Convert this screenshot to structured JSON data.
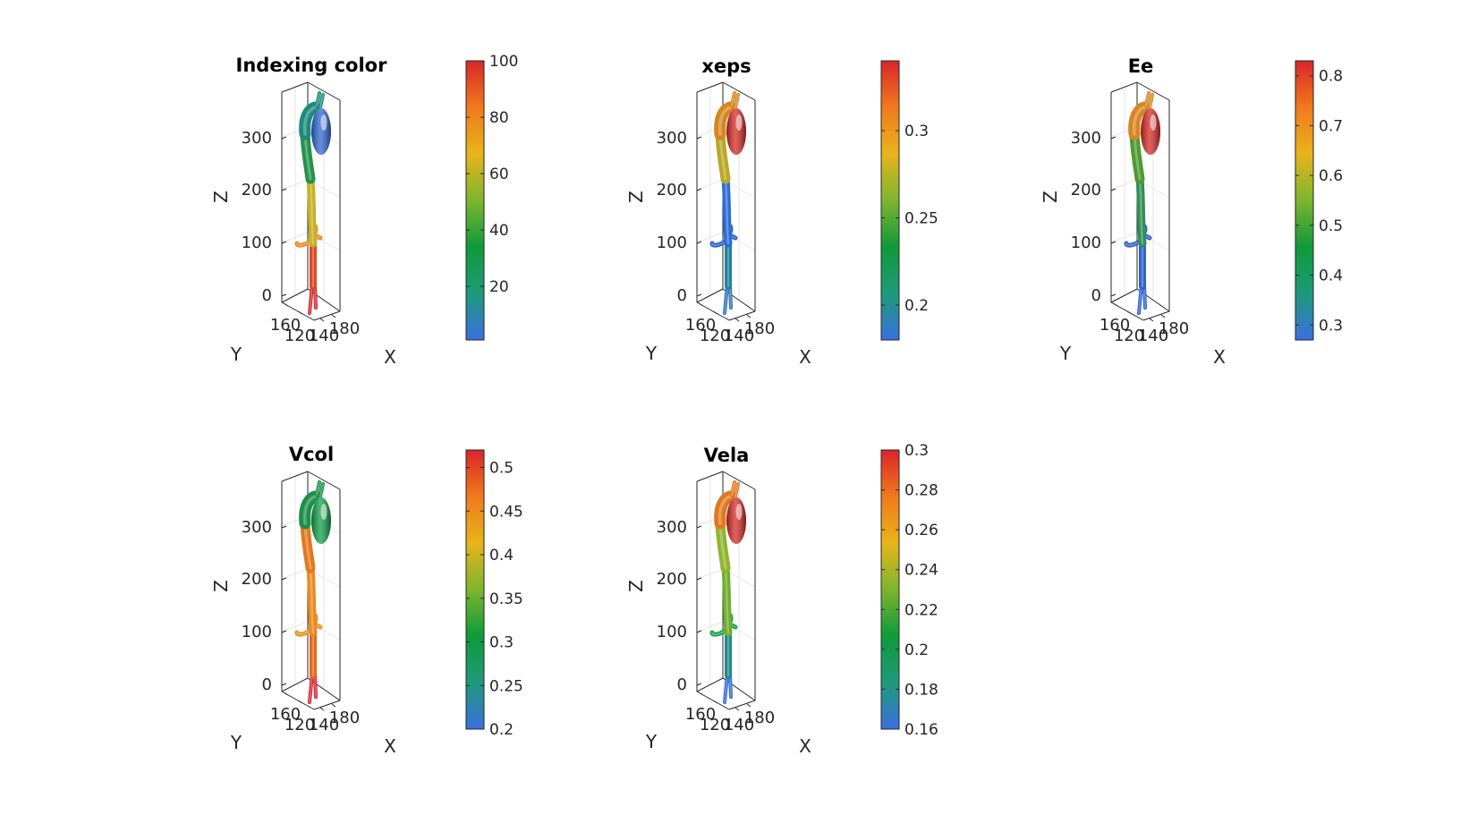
{
  "colormap": [
    "#3a6fe0",
    "#1f9a7a",
    "#0f9a3a",
    "#7db52e",
    "#e8b41a",
    "#f07a1c",
    "#d9252a"
  ],
  "panels": [
    {
      "title": "Indexing color",
      "clim": [
        1,
        100
      ],
      "cbar_ticks": [
        "100",
        "80",
        "60",
        "40",
        "20"
      ],
      "cbar_tick_values": [
        100,
        80,
        60,
        40,
        20
      ],
      "z_ticks": [
        "300",
        "200",
        "100",
        "0"
      ],
      "y_ticks": [
        "160",
        "120"
      ],
      "x_ticks": [
        "140",
        "180"
      ],
      "xlabel": "X",
      "ylabel": "Y",
      "zlabel": "Z",
      "segment_colors": {
        "heart": "#2f67d6",
        "arch": "#1e8a7c",
        "upper_aorta": "#23924a",
        "mid_aorta": "#c7b125",
        "branches": "#e58b25",
        "lower_aorta": "#d84a23",
        "legs": "#d0262c"
      }
    },
    {
      "title": "xeps",
      "clim": [
        0.18,
        0.34
      ],
      "cbar_ticks": [
        "0.3",
        "0.25",
        "0.2"
      ],
      "cbar_tick_values": [
        0.3,
        0.25,
        0.2
      ],
      "z_ticks": [
        "300",
        "200",
        "100",
        "0"
      ],
      "y_ticks": [
        "160",
        "120"
      ],
      "x_ticks": [
        "140",
        "180"
      ],
      "xlabel": "X",
      "ylabel": "Y",
      "zlabel": "Z",
      "segment_colors": {
        "heart": "#d72b26",
        "arch": "#d5861f",
        "upper_aorta": "#b9a726",
        "mid_aorta": "#2f6cd6",
        "branches": "#2a60c9",
        "lower_aorta": "#20829a",
        "legs": "#2a72b8"
      }
    },
    {
      "title": "Ee",
      "clim": [
        0.27,
        0.83
      ],
      "cbar_ticks": [
        "0.8",
        "0.7",
        "0.6",
        "0.5",
        "0.4",
        "0.3"
      ],
      "cbar_tick_values": [
        0.8,
        0.7,
        0.6,
        0.5,
        0.4,
        0.3
      ],
      "z_ticks": [
        "300",
        "200",
        "100",
        "0"
      ],
      "y_ticks": [
        "160",
        "120"
      ],
      "x_ticks": [
        "140",
        "180"
      ],
      "xlabel": "X",
      "ylabel": "Y",
      "zlabel": "Z",
      "segment_colors": {
        "heart": "#d72b26",
        "arch": "#d5861f",
        "upper_aorta": "#4c9a30",
        "mid_aorta": "#2e8f55",
        "branches": "#2d5fcc",
        "lower_aorta": "#2f62d2",
        "legs": "#2c5fd0"
      }
    },
    {
      "title": "Vcol",
      "clim": [
        0.2,
        0.52
      ],
      "cbar_ticks": [
        "0.5",
        "0.45",
        "0.4",
        "0.35",
        "0.3",
        "0.25",
        "0.2"
      ],
      "cbar_tick_values": [
        0.5,
        0.45,
        0.4,
        0.35,
        0.3,
        0.25,
        0.2
      ],
      "z_ticks": [
        "300",
        "200",
        "100",
        "0"
      ],
      "y_ticks": [
        "160",
        "120"
      ],
      "x_ticks": [
        "140",
        "180"
      ],
      "xlabel": "X",
      "ylabel": "Y",
      "zlabel": "Z",
      "segment_colors": {
        "heart": "#13a04a",
        "arch": "#1e8f4a",
        "upper_aorta": "#e3781e",
        "mid_aorta": "#e98a22",
        "branches": "#e6931f",
        "lower_aorta": "#e06a1e",
        "legs": "#d22330"
      }
    },
    {
      "title": "Vela",
      "clim": [
        0.16,
        0.3
      ],
      "cbar_ticks": [
        "0.3",
        "0.28",
        "0.26",
        "0.24",
        "0.22",
        "0.2",
        "0.18",
        "0.16"
      ],
      "cbar_tick_values": [
        0.3,
        0.28,
        0.26,
        0.24,
        0.22,
        0.2,
        0.18,
        0.16
      ],
      "z_ticks": [
        "300",
        "200",
        "100",
        "0"
      ],
      "y_ticks": [
        "160",
        "120"
      ],
      "x_ticks": [
        "140",
        "180"
      ],
      "xlabel": "X",
      "ylabel": "Y",
      "zlabel": "Z",
      "segment_colors": {
        "heart": "#d72b26",
        "arch": "#e0781f",
        "upper_aorta": "#8fb52b",
        "mid_aorta": "#6fae2c",
        "branches": "#18a04a",
        "lower_aorta": "#1f8a8a",
        "legs": "#3068d2"
      }
    }
  ],
  "chart_data": [
    {
      "type": "other",
      "title": "Indexing color",
      "zlabel": "Z",
      "ylabel": "Y",
      "xlabel": "X",
      "z_ticks": [
        0,
        100,
        200,
        300
      ],
      "y_ticks": [
        120,
        160
      ],
      "x_ticks": [
        140,
        180
      ],
      "colorbar": {
        "range": [
          1,
          100
        ],
        "ticks": [
          20,
          40,
          60,
          80,
          100
        ]
      }
    },
    {
      "type": "other",
      "title": "xeps",
      "zlabel": "Z",
      "ylabel": "Y",
      "xlabel": "X",
      "z_ticks": [
        0,
        100,
        200,
        300
      ],
      "y_ticks": [
        120,
        160
      ],
      "x_ticks": [
        140,
        180
      ],
      "colorbar": {
        "range": [
          0.18,
          0.34
        ],
        "ticks": [
          0.2,
          0.25,
          0.3
        ]
      }
    },
    {
      "type": "other",
      "title": "Ee",
      "zlabel": "Z",
      "ylabel": "Y",
      "xlabel": "X",
      "z_ticks": [
        0,
        100,
        200,
        300
      ],
      "y_ticks": [
        120,
        160
      ],
      "x_ticks": [
        140,
        180
      ],
      "colorbar": {
        "range": [
          0.27,
          0.83
        ],
        "ticks": [
          0.3,
          0.4,
          0.5,
          0.6,
          0.7,
          0.8
        ]
      }
    },
    {
      "type": "other",
      "title": "Vcol",
      "zlabel": "Z",
      "ylabel": "Y",
      "xlabel": "X",
      "z_ticks": [
        0,
        100,
        200,
        300
      ],
      "y_ticks": [
        120,
        160
      ],
      "x_ticks": [
        140,
        180
      ],
      "colorbar": {
        "range": [
          0.2,
          0.52
        ],
        "ticks": [
          0.2,
          0.25,
          0.3,
          0.35,
          0.4,
          0.45,
          0.5
        ]
      }
    },
    {
      "type": "other",
      "title": "Vela",
      "zlabel": "Z",
      "ylabel": "Y",
      "xlabel": "X",
      "z_ticks": [
        0,
        100,
        200,
        300
      ],
      "y_ticks": [
        120,
        160
      ],
      "x_ticks": [
        140,
        180
      ],
      "colorbar": {
        "range": [
          0.16,
          0.3
        ],
        "ticks": [
          0.16,
          0.18,
          0.2,
          0.22,
          0.24,
          0.26,
          0.28,
          0.3
        ]
      }
    }
  ]
}
